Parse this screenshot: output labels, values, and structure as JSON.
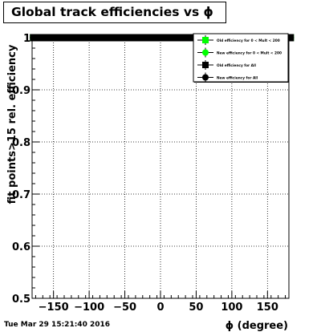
{
  "title": "Global track efficiencies vs ϕ",
  "timestamp": "Tue Mar 29 15:21:40 2016",
  "chart_data": {
    "type": "scatter",
    "title": "Global track efficiencies vs ϕ",
    "xlabel": "ϕ (degree)",
    "ylabel": "fit points>15 rel. efficiency",
    "xlim": [
      -180,
      180
    ],
    "ylim": [
      0.5,
      1.0
    ],
    "x_ticks": [
      -150,
      -100,
      -50,
      0,
      50,
      100,
      150
    ],
    "x_tick_labels": [
      "−150",
      "−100",
      "−50",
      "0",
      "50",
      "100",
      "150"
    ],
    "y_ticks": [
      0.5,
      0.6,
      0.7,
      0.8,
      0.9,
      1.0
    ],
    "y_tick_labels": [
      "0.5",
      "0.6",
      "0.7",
      "0.8",
      "0.9",
      "1"
    ],
    "grid": true,
    "legend_position": "top-right",
    "x": [
      -178,
      -170,
      -162,
      -154,
      -146,
      -138,
      -130,
      -122,
      -114,
      -106,
      -98,
      -90,
      -82,
      -74,
      -66,
      -58,
      -50,
      -42,
      -34,
      -26,
      -18,
      -10,
      -2,
      6,
      14,
      22,
      30,
      38,
      46,
      54,
      62,
      70,
      78,
      86,
      94,
      102,
      110,
      118,
      126,
      134,
      142,
      150,
      158,
      166,
      174,
      182
    ],
    "series": [
      {
        "name": "Old efficiency for 0 < Mult < 200",
        "color": "#00ff00",
        "marker": "square",
        "value": 1.0
      },
      {
        "name": "New efficiency for 0 < Mult < 200",
        "color": "#00ff00",
        "marker": "circle",
        "value": 1.0
      },
      {
        "name": "Old efficiency for All",
        "color": "#000000",
        "marker": "square",
        "value": 1.0
      },
      {
        "name": "New efficiency for All",
        "color": "#000000",
        "marker": "circle",
        "value": 1.0
      }
    ]
  }
}
